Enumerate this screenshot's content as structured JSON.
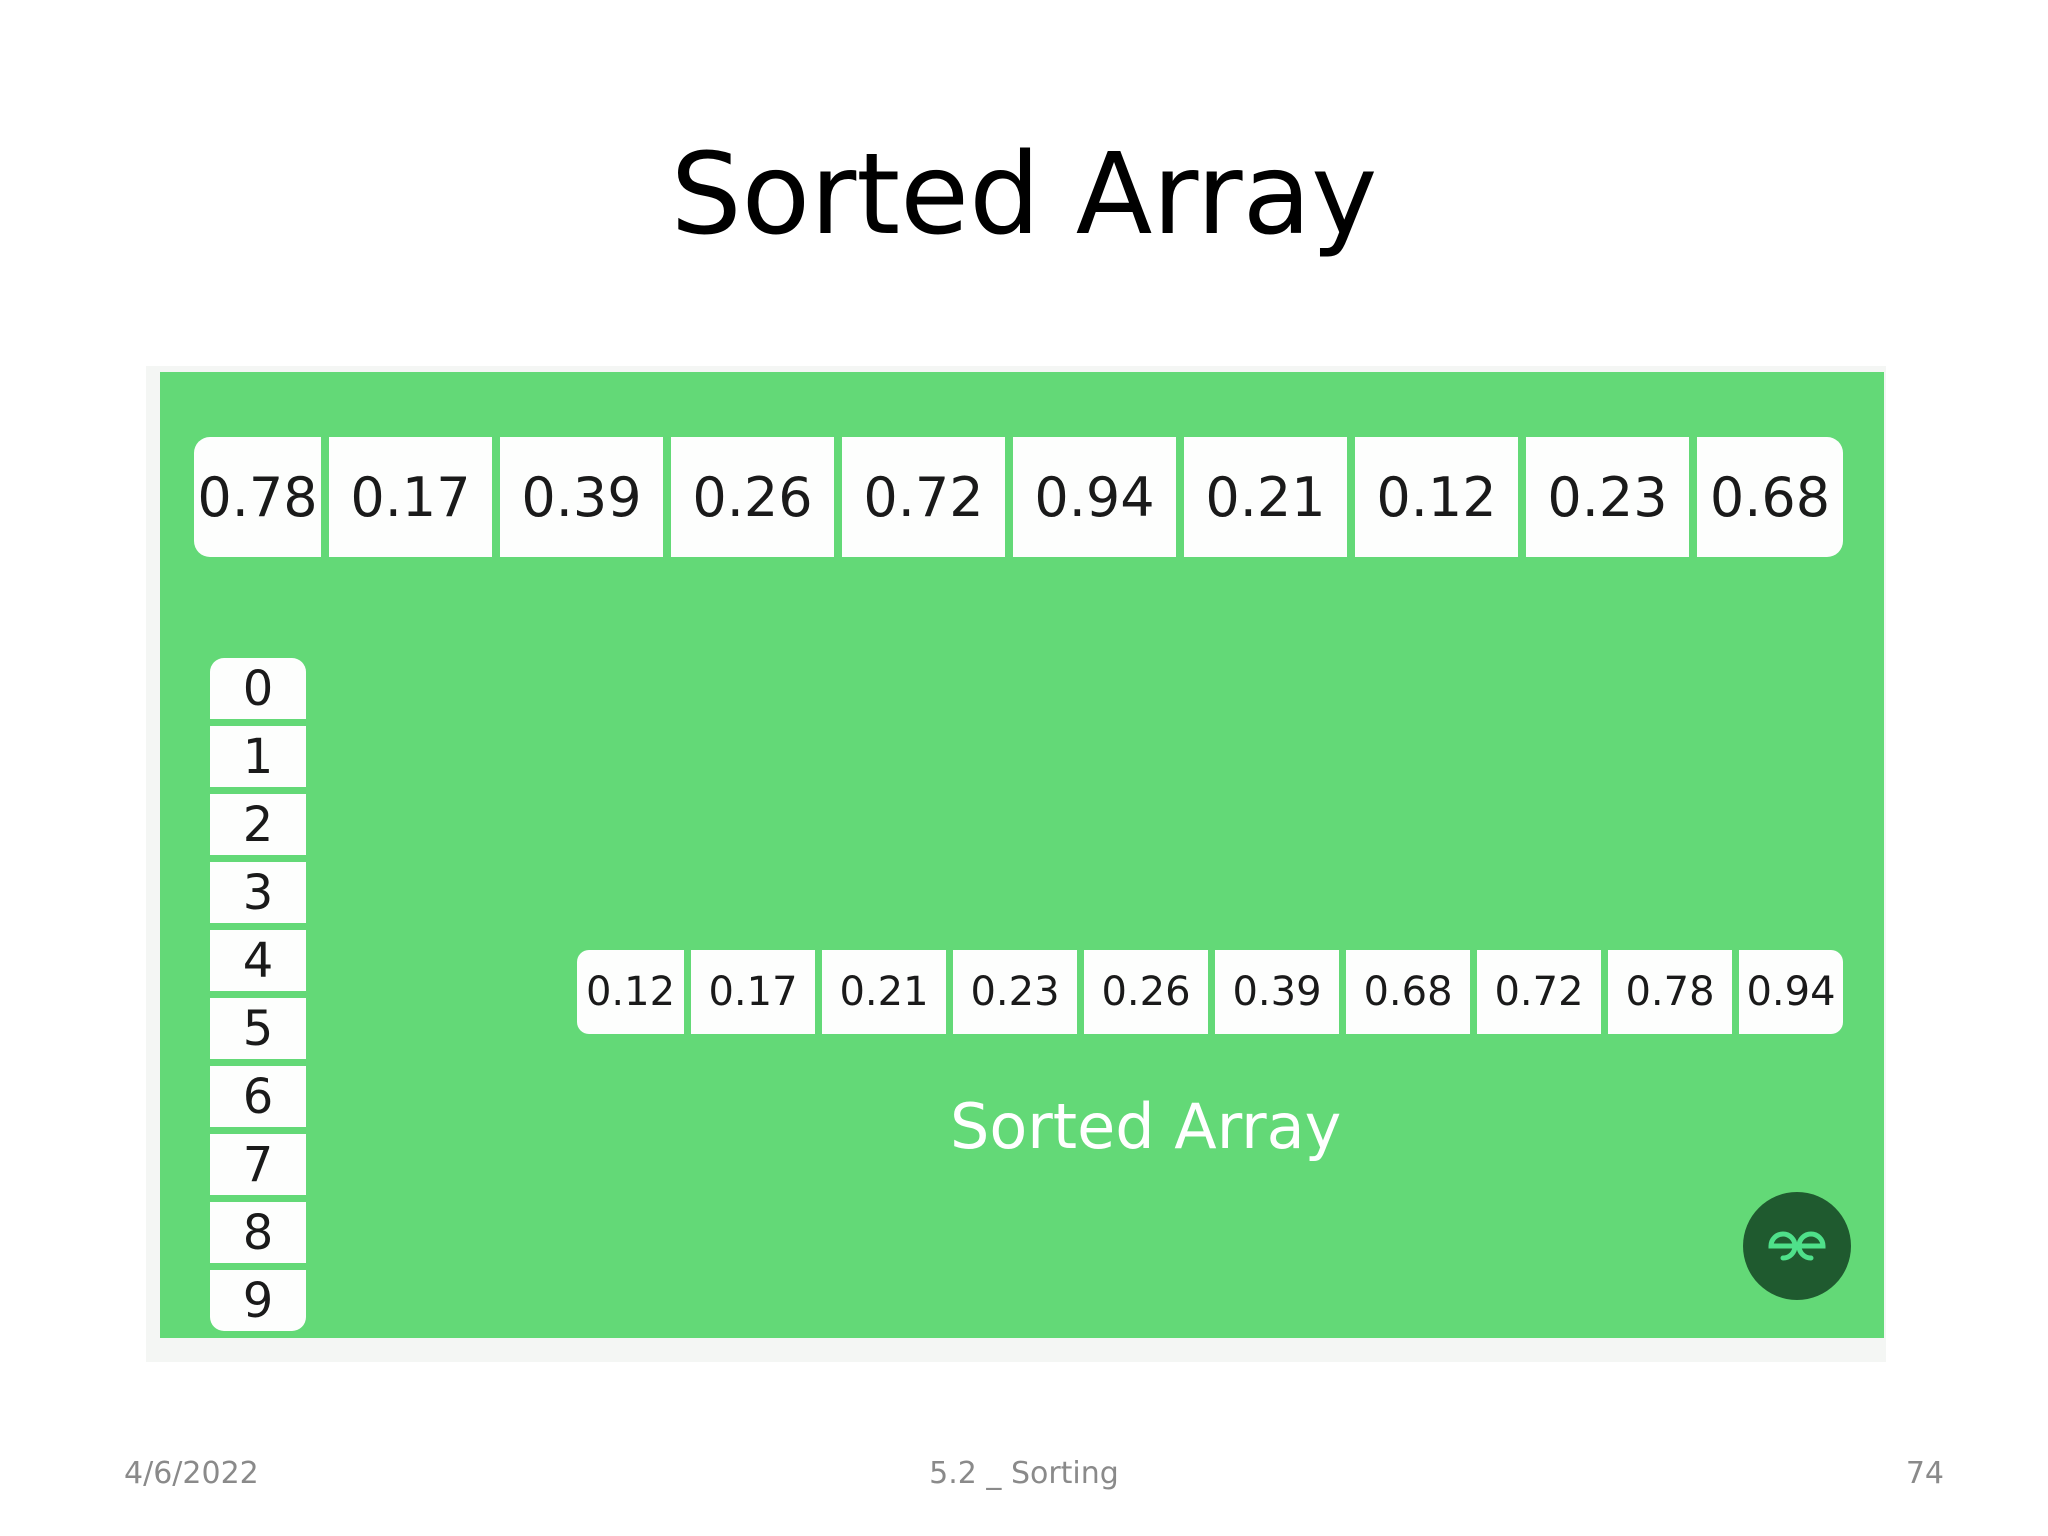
{
  "slide": {
    "title": "Sorted Array"
  },
  "figure": {
    "input_array": [
      "0.78",
      "0.17",
      "0.39",
      "0.26",
      "0.72",
      "0.94",
      "0.21",
      "0.12",
      "0.23",
      "0.68"
    ],
    "buckets": [
      "0",
      "1",
      "2",
      "3",
      "4",
      "5",
      "6",
      "7",
      "8",
      "9"
    ],
    "sorted_array": [
      "0.12",
      "0.17",
      "0.21",
      "0.23",
      "0.26",
      "0.39",
      "0.68",
      "0.72",
      "0.78",
      "0.94"
    ],
    "caption": "Sorted Array",
    "colors": {
      "background": "#63d977",
      "cell": "#fdfefd",
      "logo": "#1f5a2f",
      "logo_mark": "#4fe08a"
    },
    "logo_icon": "gfg-logo-icon"
  },
  "footer": {
    "date": "4/6/2022",
    "center": "5.2 _ Sorting",
    "page": "74"
  }
}
